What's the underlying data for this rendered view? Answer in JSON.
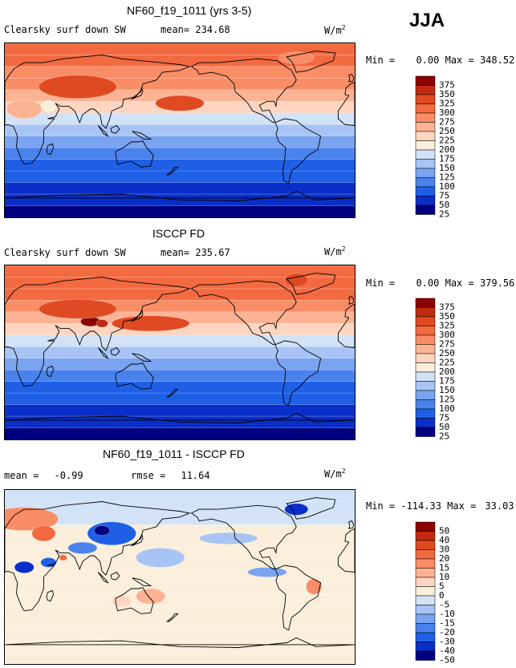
{
  "season": "JJA",
  "units_base": "W/m",
  "units_exp": "2",
  "colors": {
    "abs": [
      "#000080",
      "#0a2ec8",
      "#1e5fe6",
      "#4a82ec",
      "#7aa3f0",
      "#a7c4f4",
      "#d2e2f7",
      "#fbefdc",
      "#fdd5c0",
      "#fcb394",
      "#f98d66",
      "#f36a41",
      "#e04a22",
      "#c02a10",
      "#8b0000"
    ],
    "diff": [
      "#000080",
      "#0a2ec8",
      "#1e5fe6",
      "#4a82ec",
      "#7aa3f0",
      "#a7c4f4",
      "#d2e2f7",
      "#fbefdc",
      "#fdd5c0",
      "#fcb394",
      "#f98d66",
      "#f36a41",
      "#e04a22",
      "#c02a10",
      "#8b0000"
    ]
  },
  "chart_data": [
    {
      "type": "heatmap",
      "title": "NF60_f19_1011 (yrs 3-5)",
      "variable": "Clearsky surf down SW",
      "mean_label": "mean=",
      "mean": "234.68",
      "min_label": "Min =",
      "min": "0.00",
      "max_label": "Max =",
      "max": "348.52",
      "colorbar_levels": [
        "375",
        "350",
        "325",
        "300",
        "275",
        "250",
        "225",
        "200",
        "175",
        "150",
        "125",
        "100",
        "75",
        "50",
        "25"
      ],
      "zonal_profile": [
        11,
        11,
        10,
        10,
        9,
        8,
        6,
        5,
        4,
        3,
        2,
        2,
        1,
        1,
        0
      ],
      "features": [
        {
          "lon": 75,
          "lat": 45,
          "rx": 40,
          "ry": 12,
          "value": 12
        },
        {
          "lon": 20,
          "lat": 22,
          "rx": 18,
          "ry": 10,
          "value": 9
        },
        {
          "lon": 45,
          "lat": 25,
          "rx": 8,
          "ry": 6,
          "value": 7
        },
        {
          "lon": 180,
          "lat": 28,
          "rx": 25,
          "ry": 8,
          "value": 12
        },
        {
          "lon": 300,
          "lat": 75,
          "rx": 18,
          "ry": 6,
          "value": 10
        }
      ]
    },
    {
      "type": "heatmap",
      "title": "ISCCP FD",
      "variable": "Clearsky surf down SW",
      "mean_label": "mean=",
      "mean": "235.67",
      "min_label": "Min =",
      "min": "0.00",
      "max_label": "Max =",
      "max": "379.56",
      "colorbar_levels": [
        "375",
        "350",
        "325",
        "300",
        "275",
        "250",
        "225",
        "200",
        "175",
        "150",
        "125",
        "100",
        "75",
        "50",
        "25"
      ],
      "zonal_profile": [
        11,
        11,
        11,
        10,
        9,
        8,
        6,
        5,
        4,
        3,
        2,
        2,
        1,
        1,
        0
      ],
      "features": [
        {
          "lon": 88,
          "lat": 32,
          "rx": 10,
          "ry": 5,
          "value": 14
        },
        {
          "lon": 100,
          "lat": 30,
          "rx": 6,
          "ry": 4,
          "value": 13
        },
        {
          "lon": 300,
          "lat": 75,
          "rx": 12,
          "ry": 7,
          "value": 12
        },
        {
          "lon": 75,
          "lat": 45,
          "rx": 40,
          "ry": 10,
          "value": 12
        },
        {
          "lon": 150,
          "lat": 30,
          "rx": 40,
          "ry": 8,
          "value": 12
        }
      ]
    },
    {
      "type": "heatmap",
      "title": "NF60_f19_1011 - ISCCP FD",
      "mean_label": "mean =",
      "mean": "-0.99",
      "rmse_label": "rmse =",
      "rmse": "11.64",
      "min_label": "Min =",
      "min": "-114.33",
      "max_label": "Max =",
      "max": "33.03",
      "colorbar_levels": [
        "50",
        "40",
        "30",
        "20",
        "15",
        "10",
        "5",
        "0",
        "-5",
        "-10",
        "-15",
        "-20",
        "-30",
        "-40",
        "-50"
      ],
      "zonal_profile": [
        6,
        6,
        6,
        7,
        7,
        7,
        7,
        7,
        7,
        7,
        7,
        7,
        7,
        7,
        7
      ],
      "features": [
        {
          "lon": 20,
          "lat": 60,
          "rx": 35,
          "ry": 12,
          "value": 10
        },
        {
          "lon": 40,
          "lat": 45,
          "rx": 12,
          "ry": 8,
          "value": 11
        },
        {
          "lon": 110,
          "lat": 45,
          "rx": 25,
          "ry": 12,
          "value": 2
        },
        {
          "lon": 100,
          "lat": 48,
          "rx": 8,
          "ry": 5,
          "value": 0
        },
        {
          "lon": 80,
          "lat": 30,
          "rx": 15,
          "ry": 6,
          "value": 3
        },
        {
          "lon": 20,
          "lat": 10,
          "rx": 10,
          "ry": 6,
          "value": 1
        },
        {
          "lon": 45,
          "lat": 15,
          "rx": 8,
          "ry": 5,
          "value": 2
        },
        {
          "lon": 60,
          "lat": 20,
          "rx": 4,
          "ry": 3,
          "value": 11
        },
        {
          "lon": 300,
          "lat": 70,
          "rx": 12,
          "ry": 6,
          "value": 1
        },
        {
          "lon": 318,
          "lat": -10,
          "rx": 8,
          "ry": 8,
          "value": 10
        },
        {
          "lon": 160,
          "lat": 20,
          "rx": 25,
          "ry": 10,
          "value": 5
        },
        {
          "lon": 230,
          "lat": 40,
          "rx": 30,
          "ry": 6,
          "value": 5
        },
        {
          "lon": 270,
          "lat": 5,
          "rx": 20,
          "ry": 5,
          "value": 4
        },
        {
          "lon": 150,
          "lat": -20,
          "rx": 15,
          "ry": 8,
          "value": 9
        },
        {
          "lon": 120,
          "lat": -25,
          "rx": 10,
          "ry": 6,
          "value": 8
        }
      ]
    }
  ]
}
